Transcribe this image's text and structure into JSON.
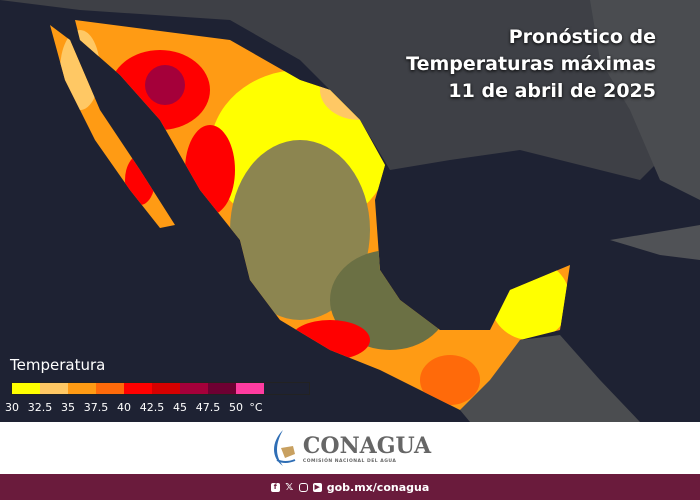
{
  "title": {
    "line1": "Pronóstico de",
    "line2": "Temperaturas máximas",
    "line3": "11 de abril de 2025"
  },
  "legend": {
    "title": "Temperatura",
    "unit": "°C",
    "ticks": [
      "30",
      "32.5",
      "35",
      "37.5",
      "40",
      "42.5",
      "45",
      "47.5",
      "50"
    ],
    "colors": [
      "#ffff00",
      "#ffc864",
      "#ff9b14",
      "#ff6a0a",
      "#ff0000",
      "#d60000",
      "#a5003a",
      "#6e0032",
      "#ff3ca0"
    ]
  },
  "colors": {
    "ocean": "#1e2233",
    "land": "#6b7044",
    "footer": "#6a1b3c"
  },
  "logo": {
    "name": "CONAGUA",
    "subtitle": "COMISIÓN NACIONAL DEL AGUA"
  },
  "footer": {
    "icons": [
      "facebook-icon",
      "x-icon",
      "instagram-icon",
      "youtube-icon"
    ],
    "url": "gob.mx/conagua"
  }
}
